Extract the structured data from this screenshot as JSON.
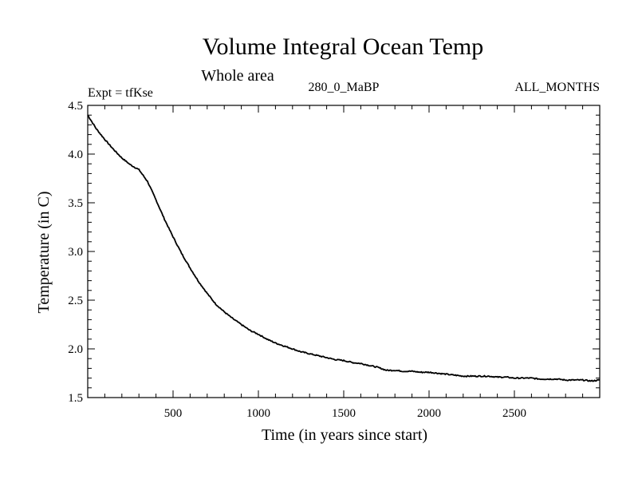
{
  "chart_data": {
    "type": "line",
    "title": "Volume Integral Ocean Temp",
    "subtitle": "Whole area",
    "experiment_label": "Expt = tfKse",
    "scenario_label": "280_0_MaBP",
    "months_label": "ALL_MONTHS",
    "xlabel": "Time (in years since start)",
    "ylabel": "Temperature (in C)",
    "xlim": [
      0,
      3000
    ],
    "ylim": [
      1.5,
      4.5
    ],
    "x_ticks": [
      500,
      1000,
      1500,
      2000,
      2500
    ],
    "x_tick_labels": [
      "500",
      "1000",
      "1500",
      "2000",
      "2500"
    ],
    "y_ticks": [
      1.5,
      2.0,
      2.5,
      3.0,
      3.5,
      4.0,
      4.5
    ],
    "y_tick_labels": [
      "1.5",
      "2.0",
      "2.5",
      "3.0",
      "3.5",
      "4.0",
      "4.5"
    ],
    "x_minor_step": 100,
    "y_minor_step": 0.1,
    "grid": false,
    "series": [
      {
        "name": "Volume Integral Ocean Temp",
        "color": "#000000",
        "x": [
          0,
          50,
          100,
          150,
          200,
          250,
          300,
          350,
          400,
          450,
          500,
          550,
          600,
          650,
          700,
          750,
          800,
          850,
          900,
          950,
          1000,
          1050,
          1100,
          1150,
          1200,
          1250,
          1300,
          1350,
          1400,
          1450,
          1500,
          1550,
          1600,
          1650,
          1700,
          1750,
          1800,
          1850,
          1900,
          1950,
          2000,
          2050,
          2100,
          2150,
          2200,
          2250,
          2300,
          2350,
          2400,
          2450,
          2500,
          2550,
          2600,
          2650,
          2700,
          2750,
          2800,
          2850,
          2900,
          2950,
          3000
        ],
        "values": [
          4.4,
          4.26,
          4.15,
          4.05,
          3.96,
          3.89,
          3.84,
          3.72,
          3.53,
          3.33,
          3.15,
          2.98,
          2.83,
          2.69,
          2.57,
          2.46,
          2.38,
          2.31,
          2.25,
          2.19,
          2.15,
          2.1,
          2.06,
          2.03,
          2.0,
          1.97,
          1.95,
          1.93,
          1.91,
          1.89,
          1.88,
          1.86,
          1.85,
          1.83,
          1.81,
          1.78,
          1.78,
          1.77,
          1.77,
          1.76,
          1.76,
          1.75,
          1.74,
          1.73,
          1.72,
          1.72,
          1.72,
          1.72,
          1.71,
          1.71,
          1.7,
          1.7,
          1.7,
          1.69,
          1.69,
          1.69,
          1.68,
          1.68,
          1.68,
          1.67,
          1.68
        ]
      }
    ]
  }
}
